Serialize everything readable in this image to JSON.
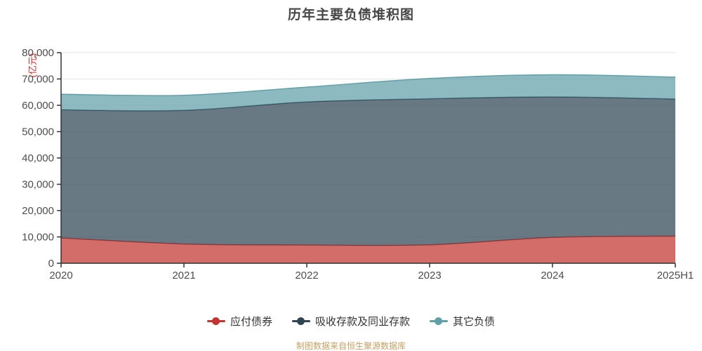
{
  "title": "历年主要负债堆积图",
  "footer": "制图数据来自恒生聚源数据库",
  "axis_text_color": "#4d4d4d",
  "axis_line_color": "#333333",
  "grid_color": "#e4e7ea",
  "unit_label_color": "#e02222",
  "chart_data": {
    "type": "area",
    "stacked": true,
    "smooth": true,
    "title": "历年主要负债堆积图",
    "ylabel": "(亿元)",
    "categories": [
      "2020",
      "2021",
      "2022",
      "2023",
      "2024",
      "2025H1"
    ],
    "series": [
      {
        "name": "应付债券",
        "color": "#c23531",
        "values": [
          9600,
          7300,
          6900,
          7000,
          9800,
          10300
        ]
      },
      {
        "name": "吸收存款及同业存款",
        "color": "#2f4554",
        "values": [
          48700,
          50800,
          54400,
          55500,
          53400,
          52100
        ]
      },
      {
        "name": "其它负债",
        "color": "#61a0a8",
        "values": [
          5900,
          5700,
          5600,
          7700,
          8400,
          8300
        ]
      }
    ],
    "stacked_totals": [
      64200,
      63800,
      66900,
      70200,
      71600,
      70700
    ],
    "ylim": [
      0,
      80000
    ],
    "yticks": [
      0,
      10000,
      20000,
      30000,
      40000,
      50000,
      60000,
      70000,
      80000
    ],
    "grid": true,
    "legend_position": "bottom",
    "area_opacity": 0.72
  }
}
